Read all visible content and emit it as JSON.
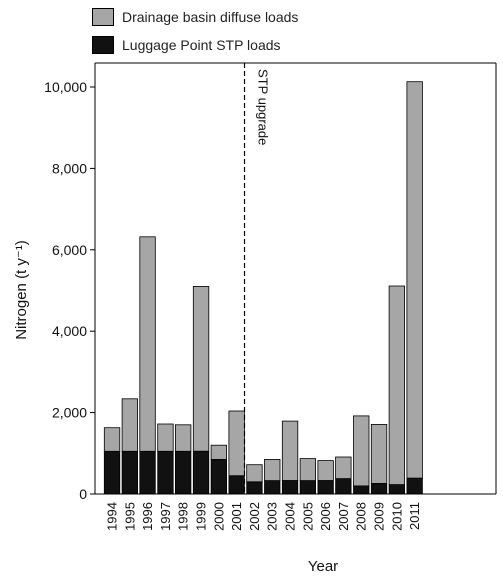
{
  "chart_data": {
    "type": "bar",
    "stacked": true,
    "categories": [
      "1994",
      "1995",
      "1996",
      "1997",
      "1998",
      "1999",
      "2000",
      "2001",
      "2002",
      "2003",
      "2004",
      "2005",
      "2006",
      "2007",
      "2008",
      "2009",
      "2010",
      "2011"
    ],
    "series": [
      {
        "name": "Luggage Point STP loads",
        "color": "#111111",
        "values": [
          1050,
          1050,
          1050,
          1050,
          1050,
          1050,
          850,
          450,
          300,
          330,
          330,
          330,
          330,
          380,
          200,
          260,
          230,
          390
        ]
      },
      {
        "name": "Drainage basin diffuse loads",
        "color": "#a6a6a6",
        "values": [
          580,
          1290,
          5270,
          670,
          650,
          4050,
          350,
          1590,
          420,
          520,
          1460,
          540,
          490,
          530,
          1720,
          1450,
          4880,
          9740
        ]
      }
    ],
    "xlabel": "Year",
    "ylabel": "Nitrogen (t y⁻¹)",
    "ylim": [
      0,
      10000
    ],
    "yticks": [
      0,
      2000,
      4000,
      6000,
      8000,
      10000
    ],
    "ytick_labels": [
      "0",
      "2,000",
      "4,000",
      "6,000",
      "8,000",
      "10,000"
    ],
    "annotation": {
      "text": "STP upgrade",
      "x_between": [
        "2001",
        "2002"
      ],
      "style": "dashed-line"
    },
    "legend": {
      "position": "top-left"
    }
  }
}
